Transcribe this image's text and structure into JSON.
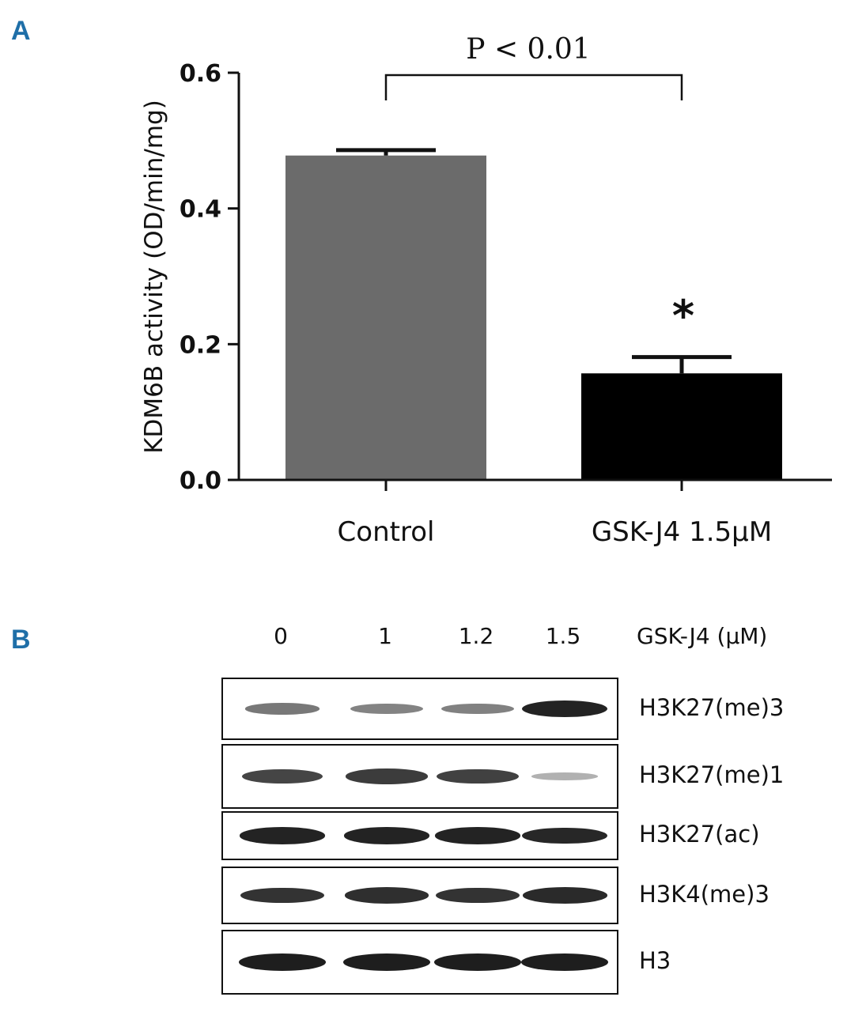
{
  "panel_a": {
    "letter": "A"
  },
  "panel_b": {
    "letter": "B"
  },
  "chart_data": {
    "type": "bar",
    "categories": [
      "Control",
      "GSK-J4 1.5μM"
    ],
    "values": [
      0.478,
      0.157
    ],
    "errors": [
      0.008,
      0.024
    ],
    "bar_colors": [
      "#6b6b6b",
      "#000000"
    ],
    "ylabel": "KDM6B activity (OD/min/mg)",
    "ylim": [
      0,
      0.6
    ],
    "yticks": [
      "0.0",
      "0.2",
      "0.4",
      "0.6"
    ],
    "annotation": "P < 0.01",
    "significance_marker": "*"
  },
  "western_blot": {
    "dose_unit": "GSK-J4 (μM)",
    "doses": [
      "0",
      "1",
      "1.2",
      "1.5"
    ],
    "rows": [
      {
        "label": "H3K27(me)3",
        "intensities": [
          0.45,
          0.38,
          0.4,
          0.95
        ]
      },
      {
        "label": "H3K27(me)1",
        "intensities": [
          0.75,
          0.8,
          0.78,
          0.12
        ]
      },
      {
        "label": "H3K27(ac)",
        "intensities": [
          0.95,
          0.95,
          0.95,
          0.92
        ]
      },
      {
        "label": "H3K4(me)3",
        "intensities": [
          0.85,
          0.88,
          0.85,
          0.9
        ]
      },
      {
        "label": "H3",
        "intensities": [
          0.98,
          0.98,
          0.98,
          0.98
        ]
      }
    ]
  }
}
